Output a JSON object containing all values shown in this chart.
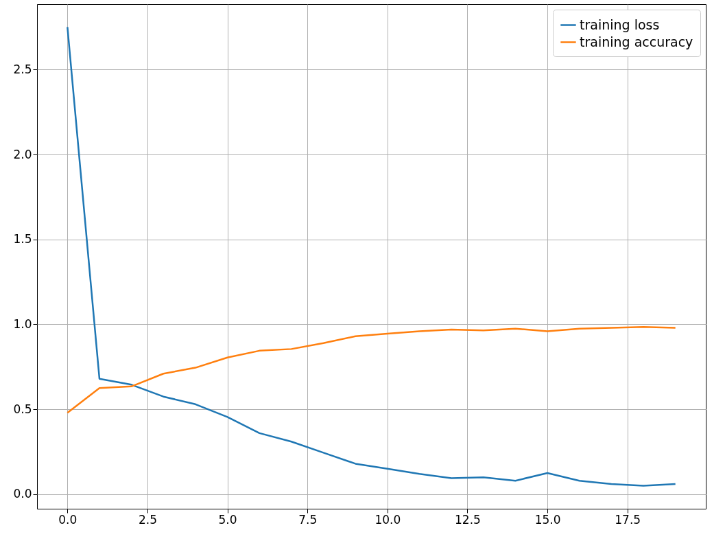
{
  "chart_data": {
    "type": "line",
    "x": [
      0,
      1,
      2,
      3,
      4,
      5,
      6,
      7,
      8,
      9,
      10,
      11,
      12,
      13,
      14,
      15,
      16,
      17,
      18,
      19
    ],
    "series": [
      {
        "name": "training loss",
        "color": "#1f77b4",
        "values": [
          2.75,
          0.68,
          0.645,
          0.575,
          0.53,
          0.455,
          0.36,
          0.31,
          0.245,
          0.18,
          0.15,
          0.12,
          0.095,
          0.1,
          0.08,
          0.125,
          0.08,
          0.06,
          0.05,
          0.06
        ]
      },
      {
        "name": "training accuracy",
        "color": "#ff7f0e",
        "values": [
          0.48,
          0.625,
          0.635,
          0.71,
          0.745,
          0.805,
          0.845,
          0.855,
          0.89,
          0.93,
          0.945,
          0.96,
          0.97,
          0.965,
          0.975,
          0.96,
          0.975,
          0.98,
          0.985,
          0.98
        ]
      }
    ],
    "xlim": [
      -0.95,
      19.95
    ],
    "xticks": [
      {
        "value": 0,
        "label": "0.0"
      },
      {
        "value": 2.5,
        "label": "2.5"
      },
      {
        "value": 5,
        "label": "5.0"
      },
      {
        "value": 7.5,
        "label": "7.5"
      },
      {
        "value": 10,
        "label": "10.0"
      },
      {
        "value": 12.5,
        "label": "12.5"
      },
      {
        "value": 15,
        "label": "15.0"
      },
      {
        "value": 17.5,
        "label": "17.5"
      }
    ],
    "ylim": [
      -0.085,
      2.885
    ],
    "yticks": [
      {
        "value": 0,
        "label": "0.0"
      },
      {
        "value": 0.5,
        "label": "0.5"
      },
      {
        "value": 1,
        "label": "1.0"
      },
      {
        "value": 1.5,
        "label": "1.5"
      },
      {
        "value": 2,
        "label": "2.0"
      },
      {
        "value": 2.5,
        "label": "2.5"
      }
    ],
    "grid": true,
    "legend": "top right",
    "line_style": "solid"
  }
}
